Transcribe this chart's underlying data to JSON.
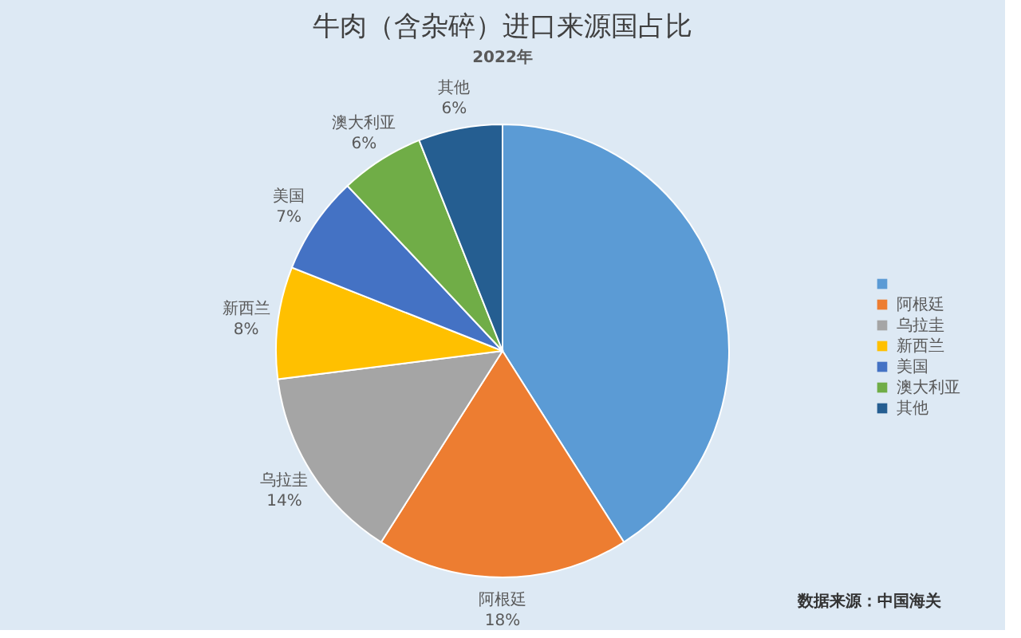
{
  "chart_data": {
    "type": "pie",
    "title": "牛肉（含杂碎）进口来源国占比",
    "subtitle": "2022年",
    "categories": [
      null,
      "阿根廷",
      "乌拉圭",
      "新西兰",
      "美国",
      "澳大利亚",
      "其他"
    ],
    "values": [
      41,
      18,
      14,
      8,
      7,
      6,
      6
    ],
    "colors": [
      "#5b9bd5",
      "#ed7d31",
      "#a5a5a5",
      "#ffc000",
      "#4472c4",
      "#70ad47",
      "#255e91"
    ],
    "value_labels": [
      null,
      "18%",
      "14%",
      "8%",
      "7%",
      "6%",
      "6%"
    ],
    "legend": "right",
    "annotations": [
      "数据来源：中国海关"
    ]
  }
}
